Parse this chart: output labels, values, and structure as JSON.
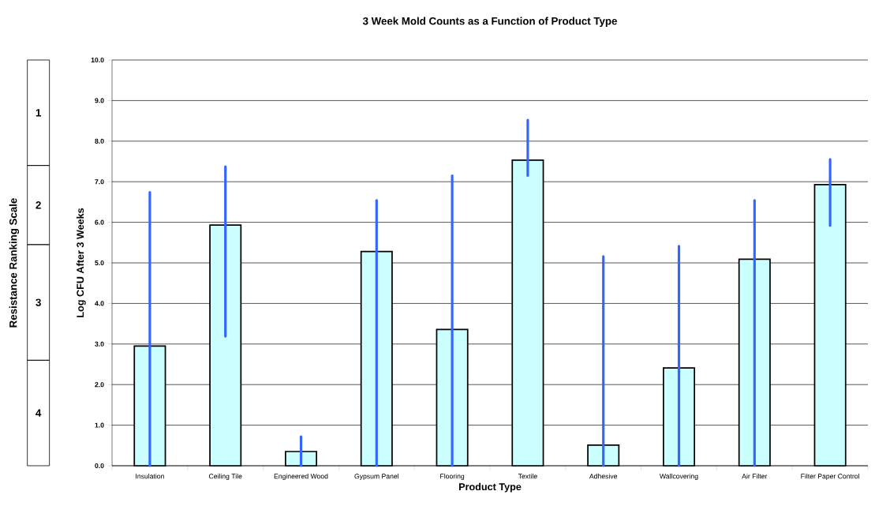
{
  "chart_data": [
    {
      "type": "other",
      "ylabel": "Resistance Ranking Scale",
      "annotations": [
        "1",
        "2",
        "3",
        "4"
      ]
    },
    {
      "type": "bar",
      "title": "3 Week Mold Counts as a Function of Product Type",
      "xlabel": "Product Type",
      "ylabel": "Log CFU After 3 Weeks",
      "categories": [
        "Insulation",
        "Ceiling Tile",
        "Engineered Wood",
        "Gypsum Panel",
        "Flooring",
        "Textile",
        "Adhesive",
        "Wallcovering",
        "Air Filter",
        "Filter Paper Control"
      ],
      "values": [
        2.95,
        5.93,
        0.35,
        5.28,
        3.36,
        7.53,
        0.51,
        2.41,
        5.09,
        6.93
      ],
      "errors": [
        [
          0,
          6.74
        ],
        [
          3.19,
          7.37
        ],
        [
          0,
          0.72
        ],
        [
          0,
          6.54
        ],
        [
          0,
          7.15
        ],
        [
          7.15,
          8.52
        ],
        [
          0,
          5.16
        ],
        [
          0,
          5.41
        ],
        [
          0,
          6.54
        ],
        [
          5.92,
          7.55
        ]
      ],
      "color": "#ccffff",
      "ylim": [
        0,
        10
      ],
      "yticks": [
        {
          "value": 0,
          "label": "0.0"
        },
        {
          "value": 1,
          "label": "1.0"
        },
        {
          "value": 2,
          "label": "2.0"
        },
        {
          "value": 3,
          "label": "3.0"
        },
        {
          "value": 4,
          "label": "4.0"
        },
        {
          "value": 5,
          "label": "5.0"
        },
        {
          "value": 6,
          "label": "6.0"
        },
        {
          "value": 7,
          "label": "7.0"
        },
        {
          "value": 8,
          "label": "8.0"
        },
        {
          "value": 9,
          "label": "9.0"
        },
        {
          "value": 10,
          "label": "10.0"
        }
      ],
      "grid": "y"
    }
  ]
}
